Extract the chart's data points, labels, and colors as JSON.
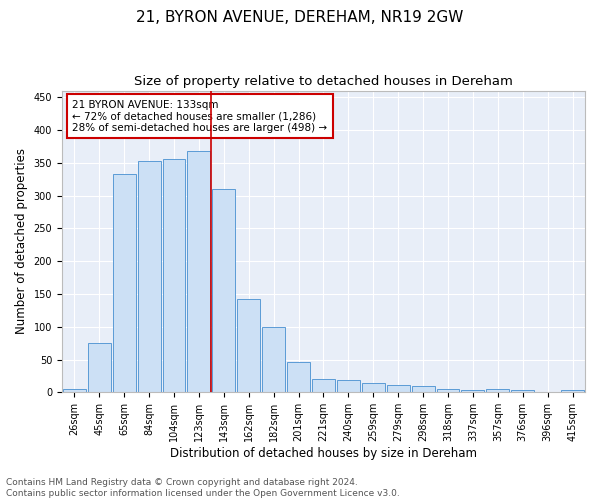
{
  "title": "21, BYRON AVENUE, DEREHAM, NR19 2GW",
  "subtitle": "Size of property relative to detached houses in Dereham",
  "xlabel": "Distribution of detached houses by size in Dereham",
  "ylabel": "Number of detached properties",
  "bar_color": "#cce0f5",
  "bar_edge_color": "#5b9bd5",
  "background_color": "#e8eef8",
  "grid_color": "#ffffff",
  "annotation_line_color": "#cc0000",
  "annotation_text": "21 BYRON AVENUE: 133sqm\n← 72% of detached houses are smaller (1,286)\n28% of semi-detached houses are larger (498) →",
  "categories": [
    "26sqm",
    "45sqm",
    "65sqm",
    "84sqm",
    "104sqm",
    "123sqm",
    "143sqm",
    "162sqm",
    "182sqm",
    "201sqm",
    "221sqm",
    "240sqm",
    "259sqm",
    "279sqm",
    "298sqm",
    "318sqm",
    "337sqm",
    "357sqm",
    "376sqm",
    "396sqm",
    "415sqm"
  ],
  "values": [
    5,
    75,
    333,
    353,
    355,
    368,
    310,
    143,
    99,
    47,
    20,
    19,
    14,
    11,
    9,
    5,
    4,
    5,
    4,
    1,
    3
  ],
  "red_line_x": 5.5,
  "ylim": [
    0,
    460
  ],
  "yticks": [
    0,
    50,
    100,
    150,
    200,
    250,
    300,
    350,
    400,
    450
  ],
  "footer": "Contains HM Land Registry data © Crown copyright and database right 2024.\nContains public sector information licensed under the Open Government Licence v3.0.",
  "title_fontsize": 11,
  "subtitle_fontsize": 9.5,
  "ylabel_fontsize": 8.5,
  "xlabel_fontsize": 8.5,
  "tick_fontsize": 7,
  "footer_fontsize": 6.5,
  "annotation_fontsize": 7.5
}
